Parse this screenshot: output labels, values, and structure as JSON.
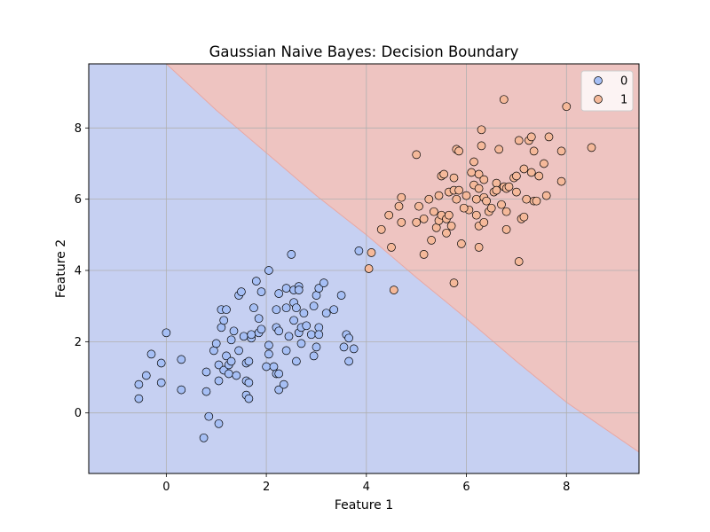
{
  "chart_data": {
    "type": "scatter",
    "title": "Gaussian Naive Bayes: Decision Boundary",
    "xlabel": "Feature 1",
    "ylabel": "Feature 2",
    "xlim": [
      -1.55,
      9.45
    ],
    "ylim": [
      -1.7,
      9.8
    ],
    "xticks": [
      0,
      2,
      4,
      6,
      8
    ],
    "yticks": [
      0,
      2,
      4,
      6,
      8
    ],
    "grid": true,
    "legend": {
      "placement": "top-right"
    },
    "decision_boundary": {
      "description": "class 1 region above boundary line",
      "points": [
        [
          0.0,
          9.8
        ],
        [
          1.0,
          8.5
        ],
        [
          2.0,
          7.3
        ],
        [
          3.0,
          6.1
        ],
        [
          4.0,
          5.0
        ],
        [
          5.0,
          3.8
        ],
        [
          6.0,
          2.65
        ],
        [
          7.0,
          1.45
        ],
        [
          8.0,
          0.3
        ],
        [
          9.45,
          -1.1
        ]
      ]
    },
    "regions": [
      {
        "class": "0",
        "color": "#c6d0f2"
      },
      {
        "class": "1",
        "color": "#eec4c1"
      }
    ],
    "series": [
      {
        "name": "0",
        "color": "#a6bff5",
        "points": [
          [
            -0.55,
            0.8
          ],
          [
            -0.55,
            0.4
          ],
          [
            -0.4,
            1.05
          ],
          [
            -0.3,
            1.65
          ],
          [
            -0.1,
            1.4
          ],
          [
            -0.1,
            0.85
          ],
          [
            0.0,
            2.25
          ],
          [
            0.3,
            1.5
          ],
          [
            0.3,
            0.65
          ],
          [
            0.75,
            -0.7
          ],
          [
            0.8,
            0.6
          ],
          [
            0.8,
            1.15
          ],
          [
            0.85,
            -0.1
          ],
          [
            0.95,
            1.75
          ],
          [
            1.0,
            1.95
          ],
          [
            1.05,
            -0.3
          ],
          [
            1.05,
            1.35
          ],
          [
            1.05,
            0.9
          ],
          [
            1.1,
            2.4
          ],
          [
            1.1,
            2.9
          ],
          [
            1.15,
            1.2
          ],
          [
            1.15,
            2.6
          ],
          [
            1.2,
            1.6
          ],
          [
            1.2,
            2.9
          ],
          [
            1.25,
            1.35
          ],
          [
            1.25,
            1.1
          ],
          [
            1.3,
            1.45
          ],
          [
            1.3,
            2.05
          ],
          [
            1.35,
            2.3
          ],
          [
            1.4,
            1.05
          ],
          [
            1.45,
            1.75
          ],
          [
            1.45,
            3.3
          ],
          [
            1.5,
            3.4
          ],
          [
            1.55,
            2.15
          ],
          [
            1.6,
            1.4
          ],
          [
            1.6,
            0.9
          ],
          [
            1.6,
            0.5
          ],
          [
            1.65,
            1.45
          ],
          [
            1.65,
            0.85
          ],
          [
            1.65,
            0.4
          ],
          [
            1.7,
            2.1
          ],
          [
            1.7,
            2.2
          ],
          [
            1.75,
            2.95
          ],
          [
            1.8,
            3.7
          ],
          [
            1.85,
            2.25
          ],
          [
            1.85,
            2.65
          ],
          [
            1.9,
            3.4
          ],
          [
            1.9,
            2.35
          ],
          [
            2.0,
            1.3
          ],
          [
            2.05,
            4.0
          ],
          [
            2.05,
            1.9
          ],
          [
            2.05,
            1.65
          ],
          [
            2.15,
            1.3
          ],
          [
            2.2,
            1.1
          ],
          [
            2.2,
            2.9
          ],
          [
            2.2,
            2.4
          ],
          [
            2.25,
            3.35
          ],
          [
            2.25,
            2.3
          ],
          [
            2.25,
            1.1
          ],
          [
            2.25,
            0.65
          ],
          [
            2.35,
            0.8
          ],
          [
            2.4,
            1.75
          ],
          [
            2.4,
            2.95
          ],
          [
            2.4,
            3.5
          ],
          [
            2.45,
            2.15
          ],
          [
            2.5,
            4.45
          ],
          [
            2.55,
            3.45
          ],
          [
            2.55,
            3.1
          ],
          [
            2.55,
            2.6
          ],
          [
            2.6,
            1.45
          ],
          [
            2.6,
            2.95
          ],
          [
            2.65,
            3.55
          ],
          [
            2.65,
            3.45
          ],
          [
            2.65,
            2.25
          ],
          [
            2.7,
            2.4
          ],
          [
            2.7,
            1.95
          ],
          [
            2.75,
            2.8
          ],
          [
            2.8,
            2.45
          ],
          [
            2.9,
            2.2
          ],
          [
            2.95,
            3.0
          ],
          [
            2.95,
            1.6
          ],
          [
            3.0,
            1.85
          ],
          [
            3.0,
            3.3
          ],
          [
            3.05,
            2.4
          ],
          [
            3.05,
            2.2
          ],
          [
            3.05,
            3.5
          ],
          [
            3.15,
            3.65
          ],
          [
            3.2,
            2.8
          ],
          [
            3.35,
            2.9
          ],
          [
            3.5,
            3.3
          ],
          [
            3.55,
            1.85
          ],
          [
            3.6,
            2.2
          ],
          [
            3.65,
            2.1
          ],
          [
            3.65,
            1.45
          ],
          [
            3.75,
            1.8
          ],
          [
            3.85,
            4.55
          ]
        ]
      },
      {
        "name": "1",
        "color": "#f5b99a",
        "points": [
          [
            4.05,
            4.05
          ],
          [
            4.1,
            4.5
          ],
          [
            4.3,
            5.15
          ],
          [
            4.45,
            5.55
          ],
          [
            4.5,
            4.65
          ],
          [
            4.55,
            3.45
          ],
          [
            4.65,
            5.8
          ],
          [
            4.7,
            6.05
          ],
          [
            4.7,
            5.35
          ],
          [
            5.0,
            7.25
          ],
          [
            5.0,
            5.35
          ],
          [
            5.05,
            5.8
          ],
          [
            5.15,
            5.45
          ],
          [
            5.15,
            4.45
          ],
          [
            5.25,
            6.0
          ],
          [
            5.3,
            4.85
          ],
          [
            5.35,
            5.65
          ],
          [
            5.4,
            5.2
          ],
          [
            5.45,
            6.1
          ],
          [
            5.45,
            5.4
          ],
          [
            5.5,
            5.55
          ],
          [
            5.5,
            6.65
          ],
          [
            5.55,
            6.7
          ],
          [
            5.6,
            5.05
          ],
          [
            5.6,
            5.45
          ],
          [
            5.65,
            5.55
          ],
          [
            5.65,
            6.2
          ],
          [
            5.7,
            5.25
          ],
          [
            5.75,
            3.65
          ],
          [
            5.75,
            6.25
          ],
          [
            5.75,
            6.6
          ],
          [
            5.8,
            6.0
          ],
          [
            5.8,
            7.4
          ],
          [
            5.85,
            6.25
          ],
          [
            5.85,
            7.35
          ],
          [
            5.9,
            4.75
          ],
          [
            6.0,
            6.1
          ],
          [
            6.05,
            5.7
          ],
          [
            6.1,
            6.75
          ],
          [
            6.15,
            7.05
          ],
          [
            6.15,
            6.4
          ],
          [
            6.2,
            6.0
          ],
          [
            6.2,
            5.55
          ],
          [
            6.25,
            4.65
          ],
          [
            6.25,
            5.25
          ],
          [
            6.25,
            6.3
          ],
          [
            6.25,
            6.7
          ],
          [
            6.3,
            7.95
          ],
          [
            6.3,
            7.5
          ],
          [
            6.35,
            5.35
          ],
          [
            6.35,
            6.05
          ],
          [
            6.35,
            6.55
          ],
          [
            6.4,
            5.95
          ],
          [
            6.45,
            5.65
          ],
          [
            6.5,
            5.75
          ],
          [
            6.55,
            6.2
          ],
          [
            6.6,
            6.45
          ],
          [
            6.6,
            6.25
          ],
          [
            6.65,
            7.4
          ],
          [
            6.7,
            5.85
          ],
          [
            6.75,
            6.35
          ],
          [
            6.75,
            8.8
          ],
          [
            6.8,
            6.3
          ],
          [
            6.8,
            5.15
          ],
          [
            6.8,
            5.65
          ],
          [
            6.85,
            6.35
          ],
          [
            6.95,
            6.6
          ],
          [
            7.0,
            6.65
          ],
          [
            7.0,
            6.2
          ],
          [
            7.05,
            7.65
          ],
          [
            7.05,
            4.25
          ],
          [
            7.1,
            5.45
          ],
          [
            7.15,
            5.5
          ],
          [
            7.15,
            6.85
          ],
          [
            7.2,
            6.0
          ],
          [
            7.25,
            7.65
          ],
          [
            7.3,
            7.75
          ],
          [
            7.3,
            6.75
          ],
          [
            7.35,
            5.95
          ],
          [
            7.4,
            5.95
          ],
          [
            7.45,
            6.65
          ],
          [
            7.55,
            7.0
          ],
          [
            7.6,
            6.1
          ],
          [
            7.65,
            7.75
          ],
          [
            7.9,
            6.5
          ],
          [
            7.9,
            7.35
          ],
          [
            8.0,
            8.6
          ],
          [
            8.5,
            7.45
          ],
          [
            7.35,
            7.35
          ],
          [
            5.95,
            5.75
          ]
        ]
      }
    ]
  }
}
